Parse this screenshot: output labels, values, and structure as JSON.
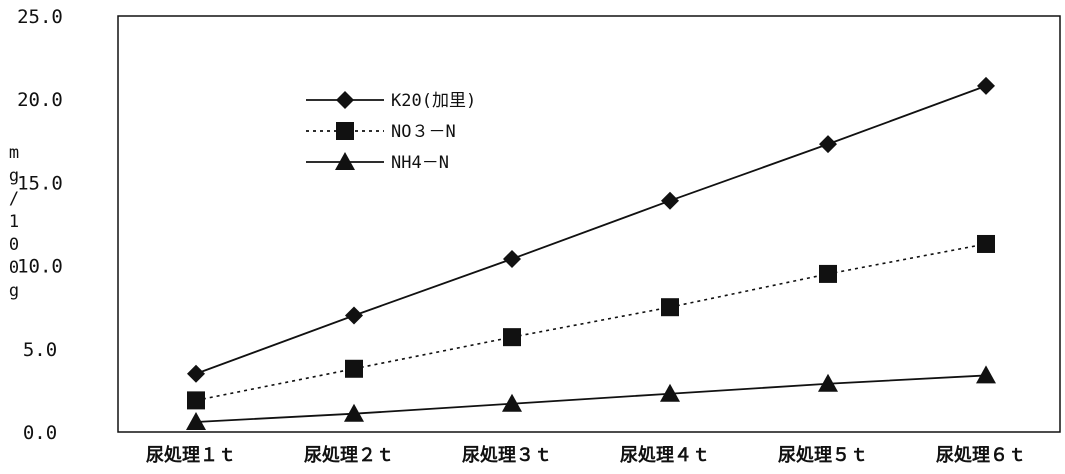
{
  "chart_data": {
    "type": "line",
    "title": "",
    "xlabel": "",
    "ylabel": "mg/100g",
    "ylim": [
      0,
      25
    ],
    "yticks": [
      "0.0",
      "5.0",
      "10.0",
      "15.0",
      "20.0",
      "25.0"
    ],
    "categories": [
      "尿処理１ｔ",
      "尿処理２ｔ",
      "尿処理３ｔ",
      "尿処理４ｔ",
      "尿処理５ｔ",
      "尿処理６ｔ"
    ],
    "grid": false,
    "legend_position": "top-left",
    "series": [
      {
        "name": "K20(加里)",
        "values": [
          3.5,
          7.0,
          10.4,
          13.9,
          17.3,
          20.8
        ],
        "marker": "diamond",
        "line": "solid",
        "color": "#111111"
      },
      {
        "name": "NO３－N",
        "values": [
          1.9,
          3.8,
          5.7,
          7.5,
          9.5,
          11.3
        ],
        "marker": "square",
        "line": "dotted",
        "color": "#111111"
      },
      {
        "name": "NH4－N",
        "values": [
          0.6,
          1.1,
          1.7,
          2.3,
          2.9,
          3.4
        ],
        "marker": "triangle",
        "line": "solid",
        "color": "#111111"
      }
    ]
  }
}
